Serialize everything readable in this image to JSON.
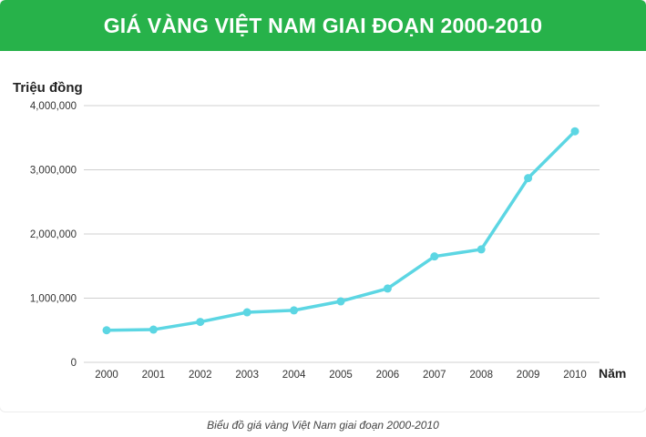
{
  "header": {
    "title": "GIÁ VÀNG VIỆT NAM GIAI ĐOẠN 2000-2010"
  },
  "caption": "Biểu đồ giá vàng Việt Nam giai đoạn 2000-2010",
  "colors": {
    "banner": "#27b24a",
    "line": "#5cd6e3",
    "grid": "#d0d0d0"
  },
  "chart_data": {
    "type": "line",
    "title": "GIÁ VÀNG VIỆT NAM GIAI ĐOẠN 2000-2010",
    "ylabel": "Triệu đồng",
    "xlabel": "Năm",
    "ylim": [
      0,
      4000000
    ],
    "yticks": [
      0,
      1000000,
      2000000,
      3000000,
      4000000
    ],
    "ytick_labels": [
      "0",
      "1,000,000",
      "2,000,000",
      "3,000,000",
      "4,000,000"
    ],
    "grid": true,
    "categories": [
      "2000",
      "2001",
      "2002",
      "2003",
      "2004",
      "2005",
      "2006",
      "2007",
      "2008",
      "2009",
      "2010"
    ],
    "series": [
      {
        "values": [
          500000,
          510000,
          630000,
          780000,
          810000,
          950000,
          1150000,
          1650000,
          1760000,
          2870000,
          3600000
        ]
      }
    ]
  }
}
